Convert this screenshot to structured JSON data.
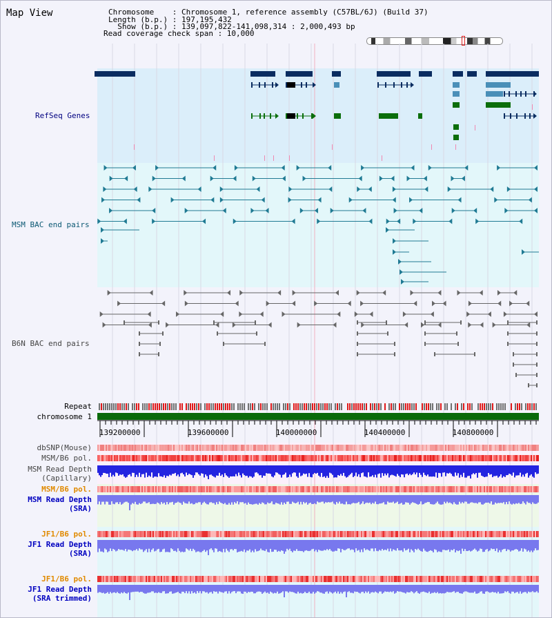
{
  "app": {
    "title": "Map View"
  },
  "info": {
    "lines": [
      "Chromosome    : Chromosome 1, reference assembly (C57BL/6J) (Build 37)",
      "Length (b.p.) : 197,195,432",
      "  Show (b.p.) : 139,097,822-141,098,314 : 2,000,493 bp",
      "Read coverage check span : 10,000"
    ]
  },
  "view": {
    "start": 139097822,
    "end": 141098314
  },
  "tracks": {
    "refseq": "RefSeq Genes",
    "msm_bac": "MSM BAC end pairs",
    "b6n_bac": "B6N BAC end pairs",
    "repeat": "Repeat",
    "chromosome": "chromosome 1",
    "dbsnp": "dbSNP(Mouse)",
    "msm_b6_pol_1": "MSM/B6 pol.",
    "msm_read_depth_cap": [
      "MSM Read Depth",
      "(Capillary)"
    ],
    "msm_b6_pol_2": "MSM/B6 pol.",
    "msm_read_depth_sra": [
      "MSM Read Depth",
      "(SRA)"
    ],
    "jf1_b6_pol_1": "JF1/B6 pol.",
    "jf1_read_depth_sra": [
      "JF1 Read Depth",
      "(SRA)"
    ],
    "jf1_b6_pol_2": "JF1/B6 pol.",
    "jf1_read_depth_trimmed": [
      "JF1 Read Depth",
      "(SRA trimmed)"
    ]
  },
  "ruler": {
    "ticks": [
      "139200000",
      "139600000",
      "140000000",
      "140400000",
      "140800000"
    ]
  },
  "colors": {
    "refseq_bg": "#dbeefa",
    "msm_bg": "#e3f7fa",
    "b6n_bg": "#f3f3fb",
    "gene_dark": "#0a2c60",
    "gene_mid": "#4a8fb8",
    "gene_green": "#0b6e0b",
    "msm_line": "#1f7a93",
    "b6n_line": "#666666",
    "chrom_green": "#0a6a0a",
    "depth_blue": "#2424e0",
    "depth_light": "#7878ee",
    "label_navy": "#000080",
    "label_teal": "#0b5873",
    "label_gray": "#444444",
    "label_orange": "#e08a00",
    "label_blue": "#0000c0"
  }
}
